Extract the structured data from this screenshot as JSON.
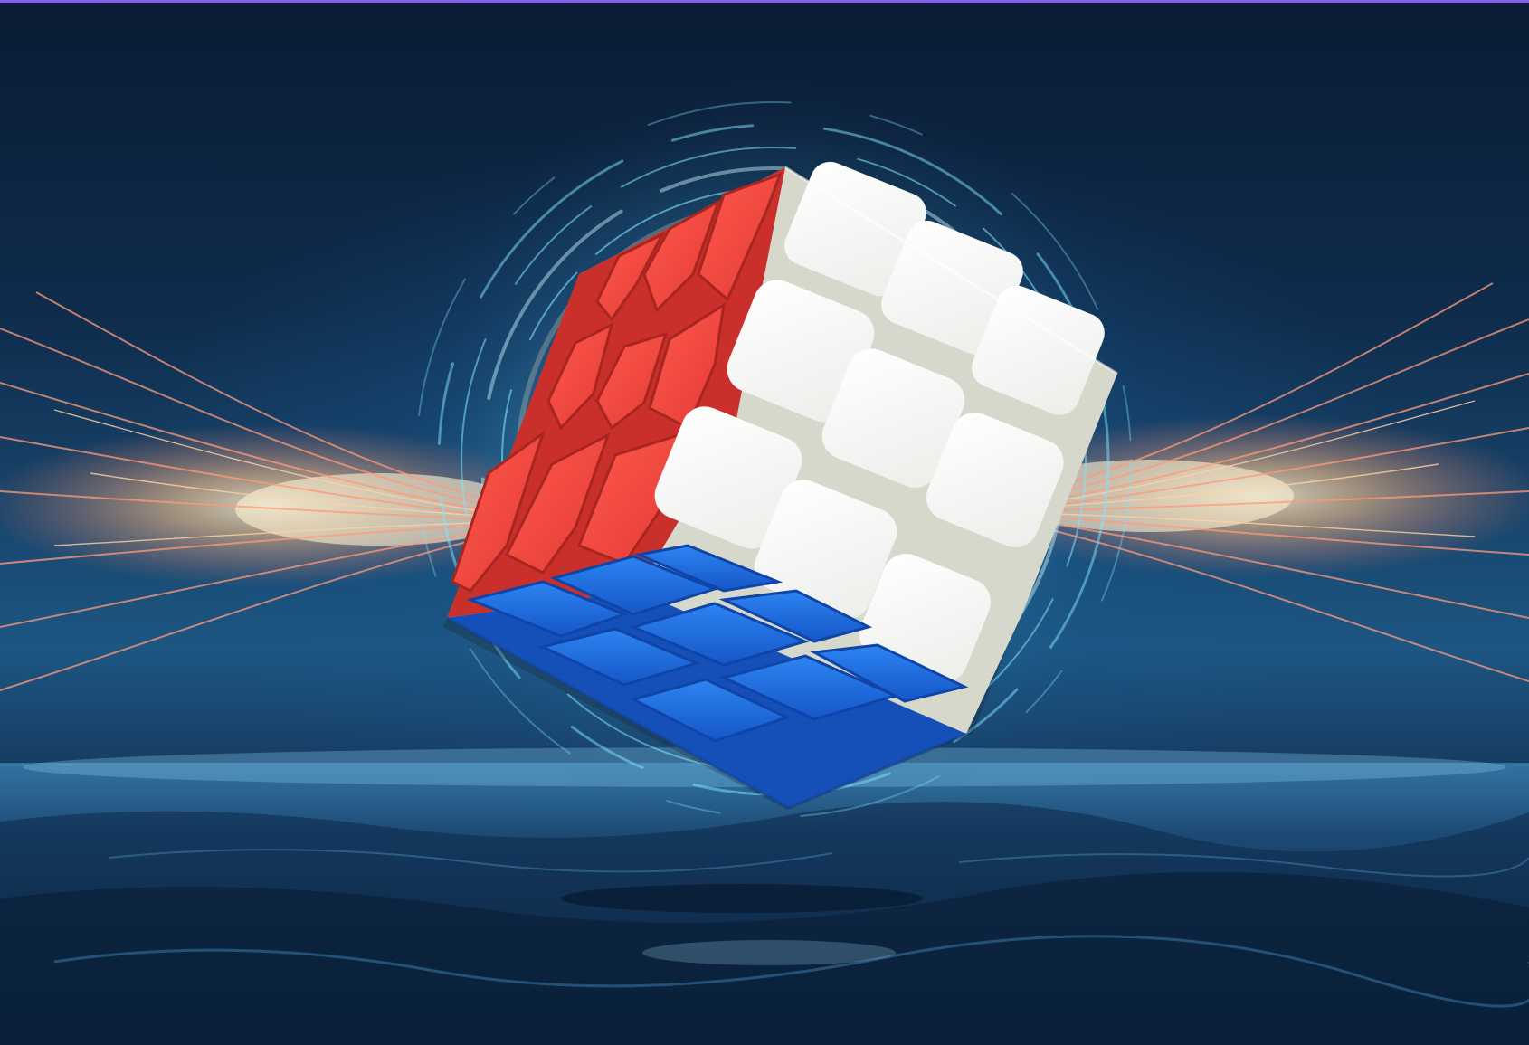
{
  "image": {
    "subject": "3x3 puzzle cube",
    "colors": {
      "white_face": "#f6f6f4",
      "red_face": "#f0443c",
      "blue_face": "#1f6be0",
      "cube_gap": "#cfd2c4",
      "sky_top": "#0a1c34",
      "horizon_glow": "#4aa8d6",
      "energy_core": "#ffd9a0",
      "energy_streak": "#ff8a6a",
      "ring_color": "#7fe3ff",
      "frame_accent": "#8a5cf0"
    },
    "icons": [
      "cube-icon",
      "energy-burst-icon",
      "ring-icon"
    ]
  }
}
